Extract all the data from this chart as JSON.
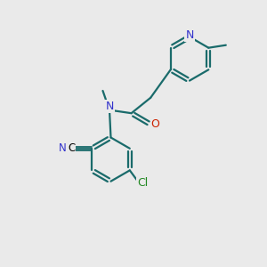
{
  "background_color": "#eaeaea",
  "bond_color": "#1a6b6b",
  "N_color": "#3333cc",
  "O_color": "#cc2200",
  "Cl_color": "#228822",
  "C_color": "#000000",
  "line_width": 1.6,
  "figsize": [
    3.0,
    3.0
  ],
  "dpi": 100,
  "xlim": [
    0,
    10
  ],
  "ylim": [
    0,
    10
  ]
}
